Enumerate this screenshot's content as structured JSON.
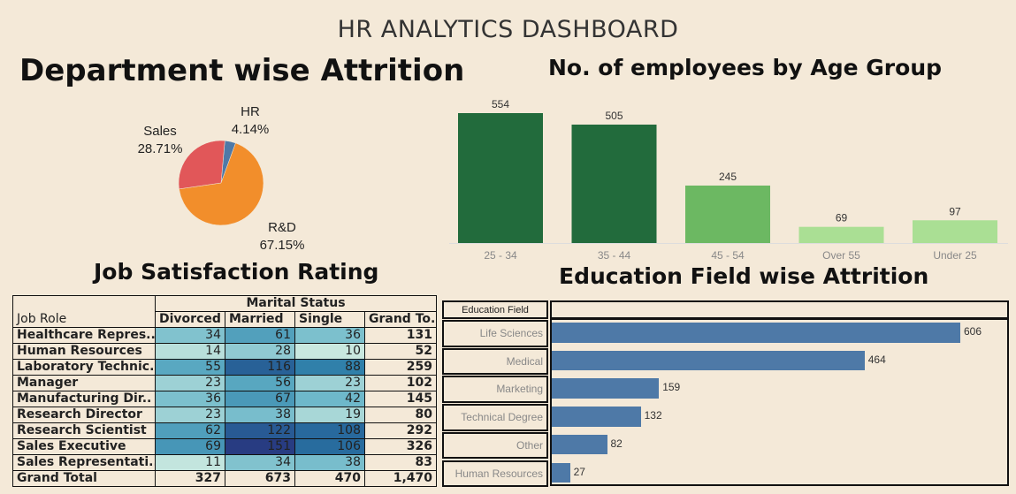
{
  "dashboard_title": "HR ANALYTICS DASHBOARD",
  "colors": {
    "background": "#f4e9d8",
    "sales": "#e15759",
    "hr": "#4e79a7",
    "rd": "#f28e2b",
    "age_dark": "#226b3c",
    "age_mid": "#6cb862",
    "age_light": "#aadf94",
    "edu_bar": "#4e79a7"
  },
  "chart_data": [
    {
      "type": "pie",
      "title": "Department wise Attrition",
      "slices": [
        {
          "label": "HR",
          "pct_label": "4.14%",
          "value": 4.14
        },
        {
          "label": "R&D",
          "pct_label": "67.15%",
          "value": 67.15
        },
        {
          "label": "Sales",
          "pct_label": "28.71%",
          "value": 28.71
        }
      ]
    },
    {
      "type": "bar",
      "title": "No. of employees by Age Group",
      "categories": [
        "25 - 34",
        "35 - 44",
        "45 - 54",
        "Over 55",
        "Under 25"
      ],
      "values": [
        554,
        505,
        245,
        69,
        97
      ],
      "ylim": [
        0,
        554
      ]
    },
    {
      "type": "table",
      "title": "Job Satisfaction Rating",
      "group_header": "Marital Status",
      "row_header": "Job Role",
      "columns": [
        "Divorced",
        "Married",
        "Single",
        "Grand To.."
      ],
      "rows": [
        {
          "label": "Healthcare Repres..",
          "values": [
            34,
            61,
            36
          ],
          "total": "131"
        },
        {
          "label": "Human Resources",
          "values": [
            14,
            28,
            10
          ],
          "total": "52"
        },
        {
          "label": "Laboratory Technic..",
          "values": [
            55,
            116,
            88
          ],
          "total": "259"
        },
        {
          "label": "Manager",
          "values": [
            23,
            56,
            23
          ],
          "total": "102"
        },
        {
          "label": "Manufacturing Dir..",
          "values": [
            36,
            67,
            42
          ],
          "total": "145"
        },
        {
          "label": "Research Director",
          "values": [
            23,
            38,
            19
          ],
          "total": "80"
        },
        {
          "label": "Research Scientist",
          "values": [
            62,
            122,
            108
          ],
          "total": "292"
        },
        {
          "label": "Sales Executive",
          "values": [
            69,
            151,
            106
          ],
          "total": "326"
        },
        {
          "label": "Sales Representati..",
          "values": [
            11,
            34,
            38
          ],
          "total": "83"
        }
      ],
      "grand_total": {
        "label": "Grand Total",
        "values": [
          "327",
          "673",
          "470"
        ],
        "total": "1,470"
      }
    },
    {
      "type": "bar",
      "orientation": "horizontal",
      "title": "Education Field wise Attrition",
      "ylabel": "Education Field",
      "categories": [
        "Life Sciences",
        "Medical",
        "Marketing",
        "Technical Degree",
        "Other",
        "Human Resources"
      ],
      "values": [
        606,
        464,
        159,
        132,
        82,
        27
      ],
      "xlim": [
        0,
        606
      ]
    }
  ]
}
